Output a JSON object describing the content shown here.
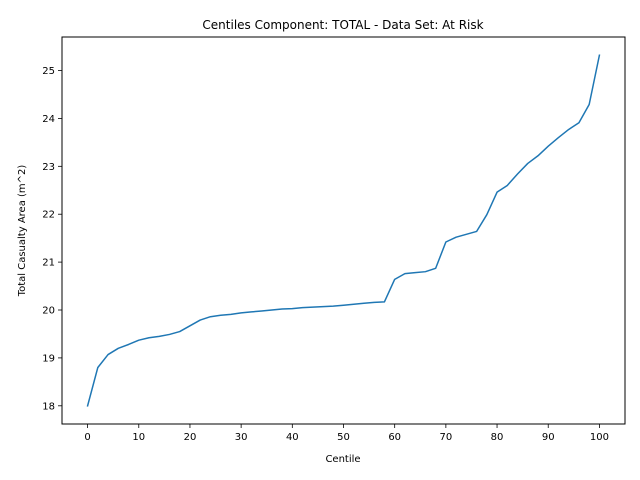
{
  "chart_data": {
    "type": "line",
    "title": "Centiles Component: TOTAL - Data Set: At Risk",
    "xlabel": "Centile",
    "ylabel": "Total Casualty Area (m^2)",
    "xlim": [
      -5,
      105
    ],
    "ylim": [
      17.62,
      25.7
    ],
    "xticks": [
      0,
      10,
      20,
      30,
      40,
      50,
      60,
      70,
      80,
      90,
      100
    ],
    "yticks": [
      18,
      19,
      20,
      21,
      22,
      23,
      24,
      25
    ],
    "grid": false,
    "series": [
      {
        "color": "#1f77b4",
        "x": [
          0,
          2,
          4,
          6,
          8,
          10,
          12,
          14,
          16,
          18,
          20,
          22,
          24,
          26,
          28,
          30,
          32,
          34,
          36,
          38,
          40,
          42,
          44,
          46,
          48,
          50,
          52,
          54,
          56,
          58,
          60,
          62,
          64,
          66,
          68,
          70,
          72,
          74,
          76,
          78,
          80,
          82,
          84,
          86,
          88,
          90,
          92,
          94,
          96,
          98,
          100
        ],
        "y": [
          18.0,
          18.8,
          19.07,
          19.2,
          19.28,
          19.37,
          19.42,
          19.45,
          19.49,
          19.55,
          19.67,
          19.79,
          19.86,
          19.89,
          19.91,
          19.94,
          19.96,
          19.98,
          20.0,
          20.02,
          20.03,
          20.05,
          20.06,
          20.07,
          20.08,
          20.1,
          20.12,
          20.14,
          20.16,
          20.17,
          20.64,
          20.76,
          20.78,
          20.8,
          20.87,
          21.42,
          21.52,
          21.58,
          21.64,
          21.99,
          22.46,
          22.6,
          22.84,
          23.06,
          23.22,
          23.42,
          23.6,
          23.77,
          23.91,
          24.29,
          25.32
        ]
      }
    ]
  }
}
